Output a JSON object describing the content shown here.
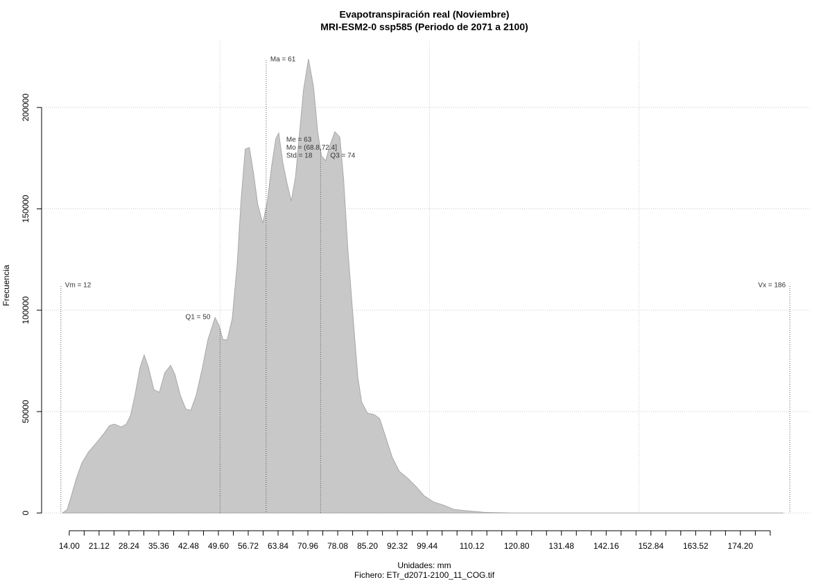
{
  "chart_data": {
    "type": "area",
    "title": [
      "Evapotranspiración real (Noviembre)",
      "MRI-ESM2-0 ssp585 (Periodo de 2071 a 2100)"
    ],
    "xlabel": [
      "Unidades: mm",
      "Fichero: ETr_d2071-2100_11_COG.tif"
    ],
    "ylabel": "Frecuencia",
    "x": [
      12.4,
      13.5,
      14.5,
      15.7,
      17.0,
      18.6,
      20.6,
      22.3,
      23.6,
      24.8,
      26.4,
      27.6,
      28.6,
      29.7,
      30.9,
      31.9,
      32.9,
      34.2,
      35.5,
      36.8,
      38.2,
      39.2,
      40.5,
      41.8,
      43.0,
      44.3,
      45.8,
      47.1,
      48.8,
      49.8,
      50.7,
      51.7,
      52.9,
      54.1,
      55.0,
      56.0,
      57.0,
      58.0,
      59.0,
      60.2,
      61.3,
      62.3,
      63.3,
      64.0,
      65.0,
      66.0,
      67.0,
      68.0,
      69.0,
      69.9,
      71.1,
      72.3,
      73.3,
      74.2,
      75.2,
      76.2,
      77.4,
      78.6,
      79.5,
      80.5,
      81.9,
      82.9,
      83.8,
      85.2,
      86.8,
      88.1,
      89.5,
      91.1,
      92.8,
      94.8,
      96.8,
      98.7,
      100.9,
      103.4,
      105.9,
      109.2,
      113.3,
      119.9,
      184.5
    ],
    "values": [
      0,
      1700,
      8500,
      17100,
      24600,
      30100,
      34900,
      39300,
      43100,
      43800,
      42400,
      43800,
      47900,
      58100,
      71800,
      77900,
      71800,
      60900,
      59500,
      69100,
      72800,
      68400,
      58100,
      51300,
      50600,
      58100,
      71800,
      85500,
      96400,
      92300,
      85500,
      85500,
      95700,
      123100,
      153800,
      179500,
      180200,
      167500,
      152100,
      142900,
      153800,
      170900,
      184600,
      187400,
      172700,
      162400,
      153800,
      165800,
      188000,
      208500,
      223900,
      210300,
      188000,
      176100,
      173700,
      181200,
      188000,
      185300,
      164100,
      129900,
      92300,
      66700,
      54700,
      49200,
      48500,
      46500,
      37600,
      27400,
      20500,
      17100,
      13000,
      8500,
      5500,
      3800,
      1700,
      1000,
      300,
      0,
      0
    ],
    "color": "#c8c8c8",
    "xlim": [
      7.4,
      191.1
    ],
    "ylim": [
      -5000,
      232500
    ],
    "yticks": [
      0,
      50000,
      100000,
      150000,
      200000
    ],
    "xticks": [
      {
        "value": 14,
        "label": "14.00"
      },
      {
        "value": 21.12,
        "label": "21.12"
      },
      {
        "value": 28.24,
        "label": "28.24"
      },
      {
        "value": 35.36,
        "label": "35.36"
      },
      {
        "value": 42.48,
        "label": "42.48"
      },
      {
        "value": 49.6,
        "label": "49.60"
      },
      {
        "value": 56.72,
        "label": "56.72"
      },
      {
        "value": 63.84,
        "label": "63.84"
      },
      {
        "value": 70.96,
        "label": "70.96"
      },
      {
        "value": 78.08,
        "label": "78.08"
      },
      {
        "value": 85.2,
        "label": "85.20"
      },
      {
        "value": 92.32,
        "label": "92.32"
      },
      {
        "value": 99.44,
        "label": "99.44"
      },
      {
        "value": 110.12,
        "label": "110.12"
      },
      {
        "value": 120.8,
        "label": "120.80"
      },
      {
        "value": 131.48,
        "label": "131.48"
      },
      {
        "value": 142.16,
        "label": "142.16"
      },
      {
        "value": 152.84,
        "label": "152.84"
      },
      {
        "value": 163.52,
        "label": "163.52"
      },
      {
        "value": 174.2,
        "label": "174.20"
      }
    ],
    "xticks_minor": [
      17.56,
      24.68,
      31.8,
      38.92,
      46.04,
      53.16,
      60.28,
      67.4,
      74.52,
      81.64,
      88.76,
      95.88,
      103,
      106.56,
      113.68,
      117.24,
      124.36,
      127.92,
      135.04,
      138.6,
      145.72,
      149.28,
      156.4,
      159.96,
      167.08,
      170.64,
      177.76,
      181.32
    ],
    "xgrid": [
      50,
      100,
      150
    ],
    "grid": true,
    "markers": [
      {
        "label": "Vm = 12",
        "value": 12
      },
      {
        "label": "Q1 = 50",
        "value": 50
      },
      {
        "label": "Ma = 61",
        "value": 61
      },
      {
        "label": "Q3 = 74",
        "value": 74
      },
      {
        "label": "Vx = 186",
        "value": 186
      }
    ],
    "stats": [
      "Me = 63",
      "Mo = (68.8,72.4]",
      "Std = 18"
    ]
  }
}
